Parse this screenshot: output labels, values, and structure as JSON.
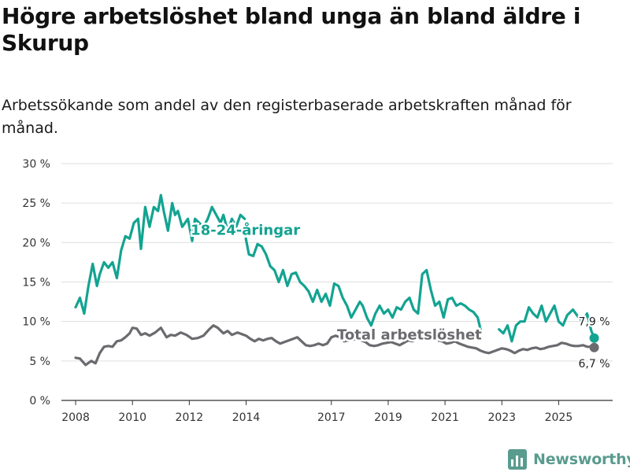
{
  "header": {
    "title": "Högre arbetslöshet bland unga än bland äldre i Skurup",
    "subtitle": "Arbetssökande som andel av den registerbaserade arbetskraften månad för månad."
  },
  "brand": {
    "name": "Newsworthy"
  },
  "chart_data": {
    "type": "line",
    "title": "Högre arbetslöshet bland unga än bland äldre i Skurup",
    "subtitle": "Arbetssökande som andel av den registerbaserade arbetskraften månad för månad.",
    "xlabel": "",
    "ylabel": "",
    "ylim": [
      0,
      30
    ],
    "y_ticks": [
      0,
      5,
      10,
      15,
      20,
      25,
      30
    ],
    "y_tick_labels": [
      "0 %",
      "5 %",
      "10 %",
      "15 %",
      "20 %",
      "25 %",
      "30 %"
    ],
    "x_ticks": [
      2008,
      2010,
      2012,
      2014,
      2017,
      2019,
      2021,
      2023,
      2025
    ],
    "x_tick_labels": [
      "2008",
      "2010",
      "2012",
      "2014",
      "2017",
      "2019",
      "2021",
      "2023",
      "2025"
    ],
    "xlim": [
      2007.5,
      2026.9
    ],
    "grid": true,
    "legend": "inline labels",
    "series": [
      {
        "name": "18-24-åringar",
        "color": "#13a391",
        "end_label": "7,9 %",
        "segments": [
          {
            "x": [
              2008.0,
              2008.15,
              2008.3,
              2008.45,
              2008.6,
              2008.75,
              2008.85,
              2009.0,
              2009.15,
              2009.3,
              2009.45,
              2009.6,
              2009.75,
              2009.9,
              2010.05,
              2010.2,
              2010.3,
              2010.45,
              2010.6,
              2010.75,
              2010.9,
              2011.0,
              2011.1,
              2011.25,
              2011.4,
              2011.5,
              2011.6,
              2011.75,
              2011.95,
              2012.1,
              2012.2,
              2012.35,
              2012.5,
              2012.65,
              2012.8,
              2012.95,
              2013.1,
              2013.2,
              2013.35,
              2013.5,
              2013.65,
              2013.8,
              2013.95
            ],
            "y": [
              11.8,
              13.0,
              11.0,
              14.5,
              17.3,
              14.5,
              16.0,
              17.5,
              16.8,
              17.5,
              15.5,
              19.0,
              20.8,
              20.5,
              22.5,
              23.0,
              19.2,
              24.5,
              22.0,
              24.5,
              24.0,
              26.0,
              24.0,
              21.5,
              25.0,
              23.5,
              24.0,
              22.0,
              23.0,
              20.2,
              23.0,
              22.5,
              22.0,
              23.0,
              24.5,
              23.5,
              22.5,
              23.5,
              21.5,
              23.0,
              22.0,
              23.5,
              23.0
            ]
          },
          {
            "x": [
              2013.99,
              2014.1,
              2014.25,
              2014.4,
              2014.55,
              2014.7,
              2014.85,
              2015.0,
              2015.15,
              2015.3,
              2015.45,
              2015.6,
              2015.75,
              2015.9,
              2016.05,
              2016.2,
              2016.35,
              2016.5,
              2016.65,
              2016.8,
              2016.95,
              2017.1,
              2017.25,
              2017.4,
              2017.55,
              2017.7,
              2017.85,
              2018.0,
              2018.1,
              2018.25,
              2018.4,
              2018.55,
              2018.7,
              2018.85,
              2019.0,
              2019.15,
              2019.3,
              2019.45,
              2019.6,
              2019.75,
              2019.9,
              2020.05,
              2020.2,
              2020.35,
              2020.5,
              2020.65,
              2020.8,
              2020.95,
              2021.1,
              2021.25,
              2021.4,
              2021.55,
              2021.7,
              2021.85,
              2022.0,
              2022.15,
              2022.25
            ],
            "y": [
              20.5,
              18.5,
              18.3,
              19.8,
              19.5,
              18.5,
              17.0,
              16.5,
              15.0,
              16.5,
              14.5,
              16.0,
              16.2,
              15.0,
              14.5,
              13.8,
              12.5,
              14.0,
              12.5,
              13.5,
              12.0,
              14.8,
              14.5,
              13.0,
              12.0,
              10.5,
              11.5,
              12.5,
              12.0,
              10.5,
              9.5,
              11.0,
              12.0,
              11.0,
              11.5,
              10.5,
              11.8,
              11.5,
              12.5,
              13.0,
              11.5,
              11.0,
              16.0,
              16.5,
              14.0,
              12.0,
              12.5,
              10.5,
              12.8,
              13.0,
              12.0,
              12.3,
              12.0,
              11.5,
              11.2,
              10.5,
              9.0
            ]
          },
          {
            "x": [
              2022.9,
              2023.05,
              2023.2,
              2023.35,
              2023.5,
              2023.65,
              2023.8,
              2023.95,
              2024.1,
              2024.25,
              2024.4,
              2024.55,
              2024.7,
              2024.85,
              2025.0,
              2025.15,
              2025.3,
              2025.5,
              2025.7,
              2025.85,
              2026.0,
              2026.15,
              2026.25
            ],
            "y": [
              9.0,
              8.5,
              9.5,
              7.5,
              9.5,
              10.0,
              10.0,
              11.8,
              11.0,
              10.5,
              12.0,
              10.0,
              11.0,
              12.0,
              10.0,
              9.5,
              10.8,
              11.5,
              10.5,
              10.0,
              11.0,
              8.8,
              7.9
            ]
          }
        ]
      },
      {
        "name": "Total arbetslöshet",
        "color": "#6b6b6f",
        "end_label": "6,7 %",
        "segments": [
          {
            "x": [
              2008.0,
              2008.15,
              2008.35,
              2008.55,
              2008.7,
              2008.85,
              2009.0,
              2009.15,
              2009.3,
              2009.45,
              2009.6,
              2009.75,
              2009.9,
              2010.0,
              2010.15,
              2010.3,
              2010.45,
              2010.6,
              2010.8,
              2011.0,
              2011.2,
              2011.35,
              2011.5,
              2011.7,
              2011.9,
              2012.1,
              2012.3,
              2012.5,
              2012.7,
              2012.85,
              2013.0,
              2013.2,
              2013.35,
              2013.5,
              2013.7,
              2013.85,
              2014.0,
              2014.15,
              2014.3,
              2014.45,
              2014.6,
              2014.75,
              2014.9,
              2015.05,
              2015.2,
              2015.35,
              2015.5,
              2015.65,
              2015.8,
              2015.95,
              2016.1,
              2016.25,
              2016.4,
              2016.55,
              2016.7,
              2016.85,
              2017.0,
              2017.15,
              2017.3,
              2017.45,
              2017.6,
              2017.75,
              2017.9,
              2018.05,
              2018.2,
              2018.35,
              2018.5,
              2018.65,
              2018.8,
              2018.95,
              2019.1,
              2019.25,
              2019.4,
              2019.55,
              2019.7,
              2019.85,
              2020.0,
              2020.15,
              2020.3,
              2020.45,
              2020.6,
              2020.75,
              2020.9,
              2021.05,
              2021.2,
              2021.35,
              2021.5,
              2021.65,
              2021.8,
              2021.95,
              2022.1,
              2022.25,
              2022.4,
              2022.55,
              2022.7,
              2022.85,
              2023.0,
              2023.15,
              2023.3,
              2023.45,
              2023.6,
              2023.75,
              2023.9,
              2024.05,
              2024.2,
              2024.35,
              2024.5,
              2024.65,
              2024.8,
              2024.95,
              2025.1,
              2025.25,
              2025.4,
              2025.55,
              2025.7,
              2025.85,
              2026.0,
              2026.15,
              2026.25
            ],
            "y": [
              5.4,
              5.3,
              4.5,
              5.0,
              4.7,
              6.0,
              6.8,
              6.9,
              6.8,
              7.5,
              7.6,
              8.0,
              8.5,
              9.2,
              9.1,
              8.3,
              8.5,
              8.2,
              8.6,
              9.2,
              8.0,
              8.3,
              8.2,
              8.6,
              8.3,
              7.8,
              7.9,
              8.2,
              9.0,
              9.5,
              9.2,
              8.5,
              8.8,
              8.3,
              8.6,
              8.4,
              8.2,
              7.8,
              7.5,
              7.8,
              7.6,
              7.8,
              7.9,
              7.5,
              7.2,
              7.4,
              7.6,
              7.8,
              8.0,
              7.5,
              7.0,
              6.9,
              7.0,
              7.2,
              7.0,
              7.2,
              8.0,
              8.2,
              8.0,
              7.5,
              7.6,
              7.7,
              7.8,
              7.6,
              7.4,
              7.0,
              6.9,
              7.0,
              7.2,
              7.3,
              7.4,
              7.2,
              7.0,
              7.3,
              7.6,
              7.5,
              7.8,
              8.0,
              8.2,
              8.3,
              8.0,
              7.6,
              7.5,
              7.2,
              7.3,
              7.5,
              7.2,
              7.0,
              6.8,
              6.7,
              6.6,
              6.3,
              6.1,
              6.0,
              6.2,
              6.4,
              6.6,
              6.5,
              6.3,
              6.0,
              6.3,
              6.5,
              6.4,
              6.6,
              6.7,
              6.5,
              6.6,
              6.8,
              6.9,
              7.0,
              7.3,
              7.2,
              7.0,
              6.9,
              6.9,
              7.0,
              6.8,
              6.8,
              6.7
            ]
          }
        ]
      }
    ]
  }
}
